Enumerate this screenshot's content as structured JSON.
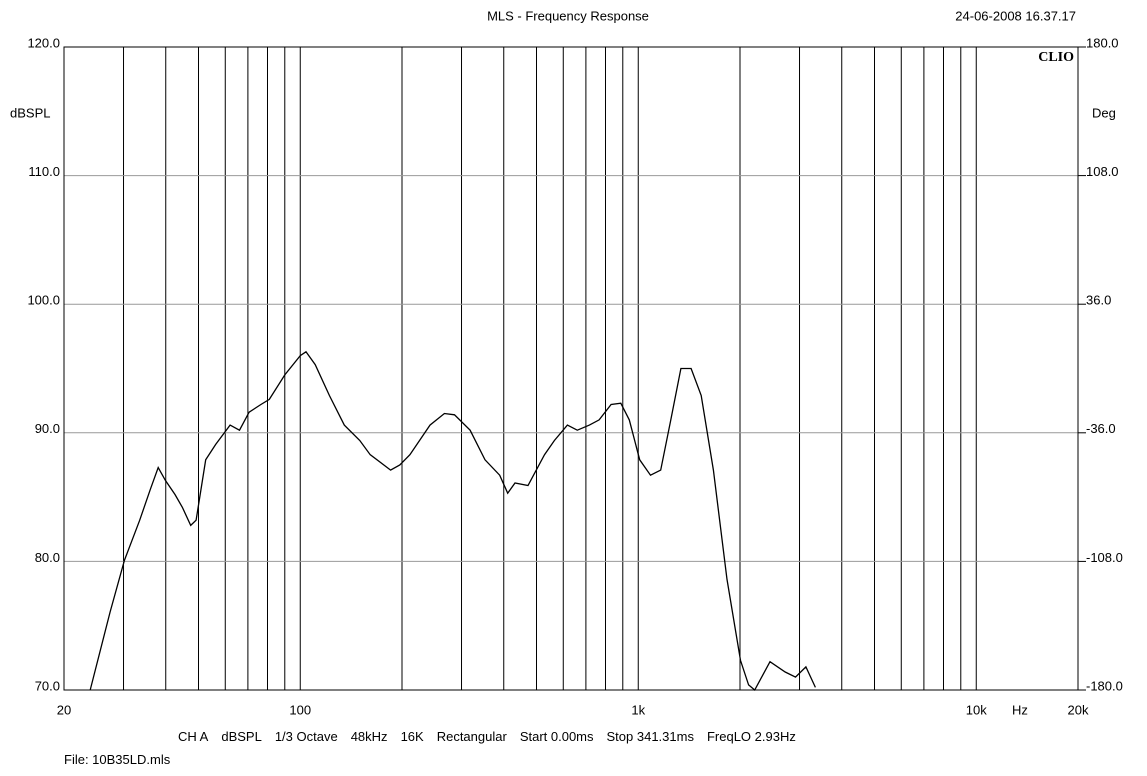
{
  "chart_data": {
    "type": "line",
    "title": "MLS - Frequency Response",
    "timestamp": "24-06-2008 16.37.17",
    "brand": "CLIO",
    "y_label": "dBSPL",
    "y2_label": "Deg",
    "x_unit": "Hz",
    "log_x": true,
    "xlim": [
      20,
      20000
    ],
    "xticks": [
      20,
      100,
      {
        "value": 1000,
        "label": "1k"
      },
      {
        "value": 10000,
        "label": "10k"
      },
      {
        "value": 20000,
        "label": "20k"
      }
    ],
    "xgrid": [
      30,
      40,
      50,
      60,
      70,
      80,
      90,
      100,
      200,
      300,
      400,
      500,
      600,
      700,
      800,
      900,
      1000,
      2000,
      3000,
      4000,
      5000,
      6000,
      7000,
      8000,
      9000,
      10000
    ],
    "ylim": [
      70,
      120
    ],
    "yticks": [
      {
        "value": 70,
        "label": "70.0"
      },
      {
        "value": 80,
        "label": "80.0"
      },
      {
        "value": 90,
        "label": "90.0"
      },
      {
        "value": 100,
        "label": "100.0"
      },
      {
        "value": 110,
        "label": "110.0"
      },
      {
        "value": 120,
        "label": "120.0"
      }
    ],
    "y2lim": [
      -180,
      180
    ],
    "y2ticks": [
      {
        "value": -180,
        "label": "-180.0"
      },
      {
        "value": -108,
        "label": "-108.0"
      },
      {
        "value": -36,
        "label": "-36.0"
      },
      {
        "value": 36,
        "label": "36.0"
      },
      {
        "value": 108,
        "label": "108.0"
      },
      {
        "value": 180,
        "label": "180.0"
      }
    ],
    "grid": true,
    "series": [
      {
        "color": "#000000",
        "x": [
          23.9,
          27.4,
          30.2,
          33.5,
          36,
          38,
          39.9,
          42.6,
          44.8,
          47.4,
          49.2,
          52.5,
          56.2,
          62,
          66.1,
          70.6,
          76.5,
          81,
          90,
          100,
          104,
          110.7,
          122,
          135,
          150,
          161,
          185,
          197,
          211,
          242,
          267,
          286,
          318,
          352,
          389,
          411,
          432,
          472,
          528,
          565,
          617,
          660,
          717,
          766,
          831,
          888,
          941,
          1010,
          1087,
          1165,
          1248,
          1337,
          1433,
          1535,
          1668,
          1831,
          2007,
          2121,
          2210,
          2454,
          2722,
          2918,
          3134,
          3342
        ],
        "values": [
          70.0,
          76.1,
          80.1,
          83.2,
          85.6,
          87.3,
          86.3,
          85.2,
          84.2,
          82.8,
          83.2,
          87.9,
          89.1,
          90.6,
          90.2,
          91.6,
          92.2,
          92.6,
          94.5,
          96.0,
          96.3,
          95.3,
          92.9,
          90.6,
          89.4,
          88.3,
          87.1,
          87.5,
          88.3,
          90.6,
          91.5,
          91.4,
          90.2,
          87.9,
          86.7,
          85.3,
          86.1,
          85.9,
          88.3,
          89.4,
          90.6,
          90.2,
          90.6,
          91.0,
          92.2,
          92.3,
          91.0,
          87.9,
          86.7,
          87.1,
          91.0,
          95.0,
          95.0,
          92.9,
          87.1,
          78.6,
          72.3,
          70.4,
          70.0,
          72.2,
          71.4,
          71.0,
          71.8,
          70.2
        ]
      }
    ],
    "settings": [
      "CH A",
      "dBSPL",
      "1/3 Octave",
      "48kHz",
      "16K",
      "Rectangular",
      "Start 0.00ms",
      "Stop 341.31ms",
      "FreqLO 2.93Hz"
    ],
    "file": "File: 10B35LD.mls"
  }
}
